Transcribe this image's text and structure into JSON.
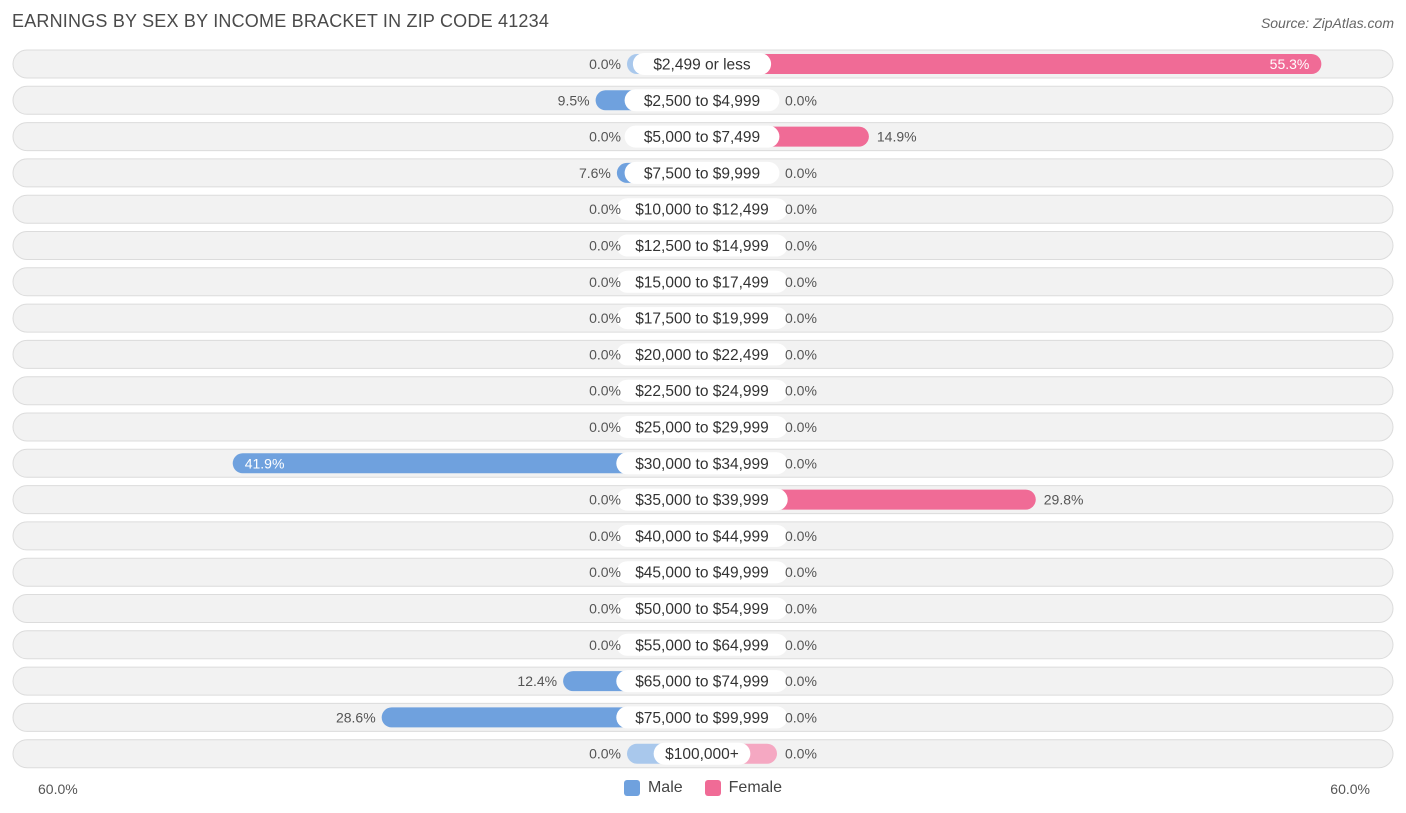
{
  "title": "EARNINGS BY SEX BY INCOME BRACKET IN ZIP CODE 41234",
  "source": "Source: ZipAtlas.com",
  "colors": {
    "male": "#6fa1de",
    "male_light": "#a9c8ec",
    "female": "#f06b96",
    "female_light": "#f5a8c2",
    "row_bg": "#f0f0f0",
    "row_border": "#dcdcdc"
  },
  "chart_data": {
    "type": "bar",
    "orientation": "horizontal-diverging",
    "categories": [
      "$2,499 or less",
      "$2,500 to $4,999",
      "$5,000 to $7,499",
      "$7,500 to $9,999",
      "$10,000 to $12,499",
      "$12,500 to $14,999",
      "$15,000 to $17,499",
      "$17,500 to $19,999",
      "$20,000 to $22,499",
      "$22,500 to $24,999",
      "$25,000 to $29,999",
      "$30,000 to $34,999",
      "$35,000 to $39,999",
      "$40,000 to $44,999",
      "$45,000 to $49,999",
      "$50,000 to $54,999",
      "$55,000 to $64,999",
      "$65,000 to $74,999",
      "$75,000 to $99,999",
      "$100,000+"
    ],
    "series": [
      {
        "name": "Male",
        "values": [
          0.0,
          9.5,
          0.0,
          7.6,
          0.0,
          0.0,
          0.0,
          0.0,
          0.0,
          0.0,
          0.0,
          41.9,
          0.0,
          0.0,
          0.0,
          0.0,
          0.0,
          12.4,
          28.6,
          0.0
        ]
      },
      {
        "name": "Female",
        "values": [
          55.3,
          0.0,
          14.9,
          0.0,
          0.0,
          0.0,
          0.0,
          0.0,
          0.0,
          0.0,
          0.0,
          0.0,
          29.8,
          0.0,
          0.0,
          0.0,
          0.0,
          0.0,
          0.0,
          0.0
        ]
      }
    ],
    "value_labels": {
      "male": [
        "0.0%",
        "9.5%",
        "0.0%",
        "7.6%",
        "0.0%",
        "0.0%",
        "0.0%",
        "0.0%",
        "0.0%",
        "0.0%",
        "0.0%",
        "41.9%",
        "0.0%",
        "0.0%",
        "0.0%",
        "0.0%",
        "0.0%",
        "12.4%",
        "28.6%",
        "0.0%"
      ],
      "female": [
        "55.3%",
        "0.0%",
        "14.9%",
        "0.0%",
        "0.0%",
        "0.0%",
        "0.0%",
        "0.0%",
        "0.0%",
        "0.0%",
        "0.0%",
        "0.0%",
        "29.8%",
        "0.0%",
        "0.0%",
        "0.0%",
        "0.0%",
        "0.0%",
        "0.0%",
        "0.0%"
      ]
    },
    "axis": {
      "min_label": "60.0%",
      "max_label": "60.0%",
      "range": [
        60,
        60
      ]
    },
    "legend": [
      "Male",
      "Female"
    ],
    "legend_position": "bottom-center"
  }
}
